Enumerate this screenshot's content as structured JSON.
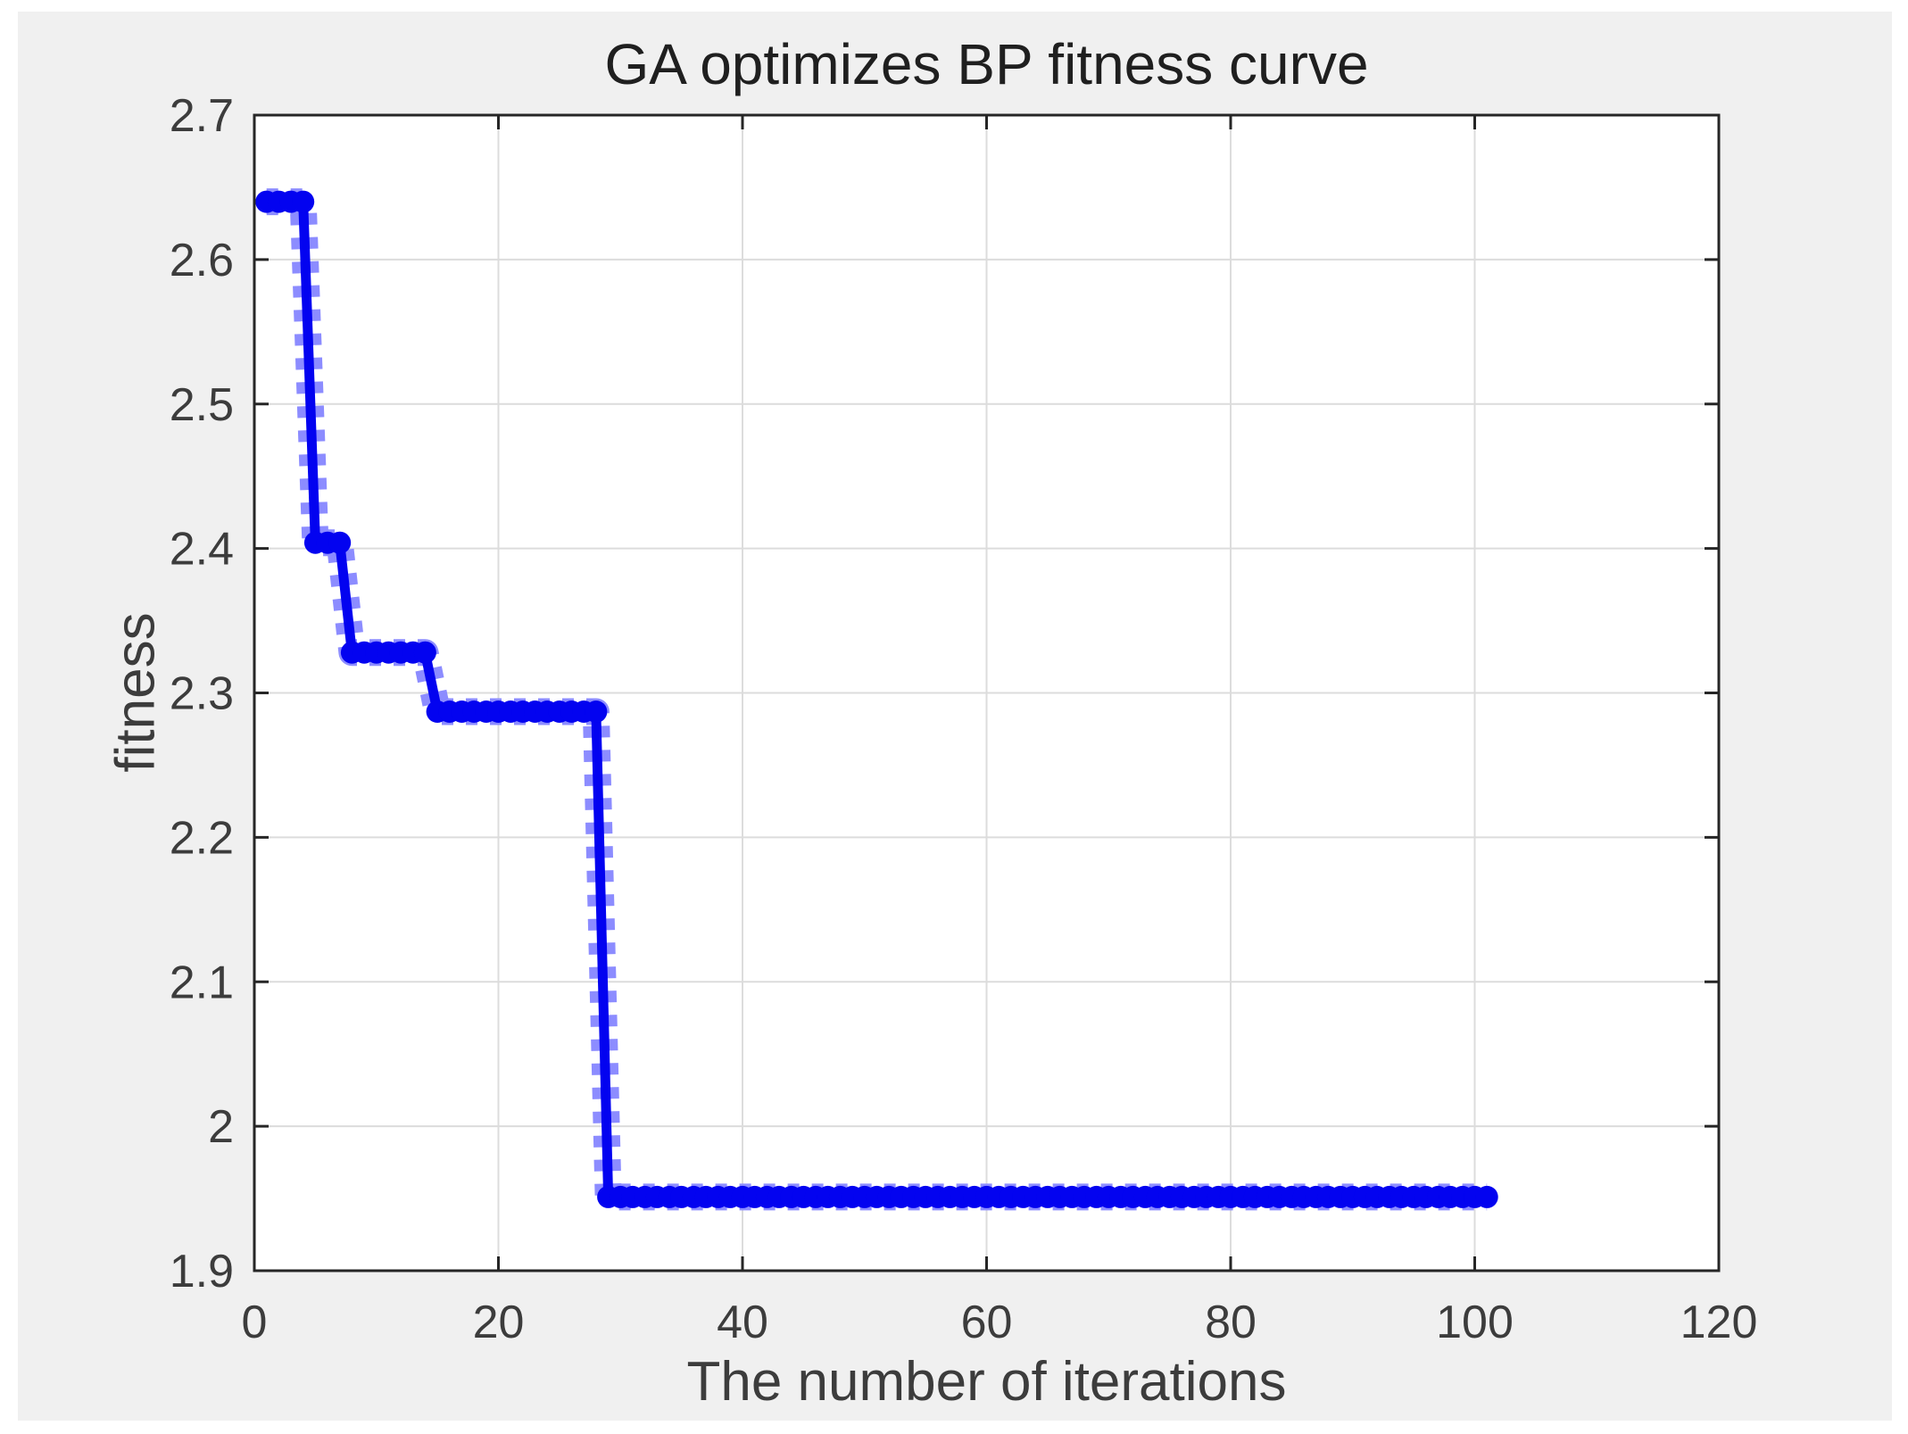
{
  "window": {
    "background_color": "#ffffff",
    "panel_color": "#f0f0f0",
    "plot_background_color": "#ffffff",
    "grid_color": "#dcdcdc",
    "axis_color": "#262626",
    "text_color": "#3c3c3c",
    "title_color": "#1f1f1f"
  },
  "chart_data": {
    "type": "line",
    "title": "GA optimizes BP fitness curve",
    "xlabel": "The number of iterations",
    "ylabel": "fitness",
    "xlim": [
      0,
      120
    ],
    "ylim": [
      1.9,
      2.7
    ],
    "x_ticks": [
      0,
      20,
      40,
      60,
      80,
      100,
      120
    ],
    "y_ticks": [
      1.9,
      2,
      2.1,
      2.2,
      2.3,
      2.4,
      2.5,
      2.6,
      2.7
    ],
    "grid": true,
    "legend": "none",
    "series": [
      {
        "name": "fitness",
        "color": "#0303F0",
        "marker": "filled-square-dotted-edge",
        "marker_fringe_color": "#8C8CFF",
        "steps": [
          {
            "from_iteration": 1,
            "to_iteration": 4,
            "fitness": 2.64
          },
          {
            "from_iteration": 5,
            "to_iteration": 7,
            "fitness": 2.404
          },
          {
            "from_iteration": 8,
            "to_iteration": 14,
            "fitness": 2.328
          },
          {
            "from_iteration": 15,
            "to_iteration": 28,
            "fitness": 2.287
          },
          {
            "from_iteration": 29,
            "to_iteration": 101,
            "fitness": 1.951
          }
        ]
      }
    ]
  }
}
